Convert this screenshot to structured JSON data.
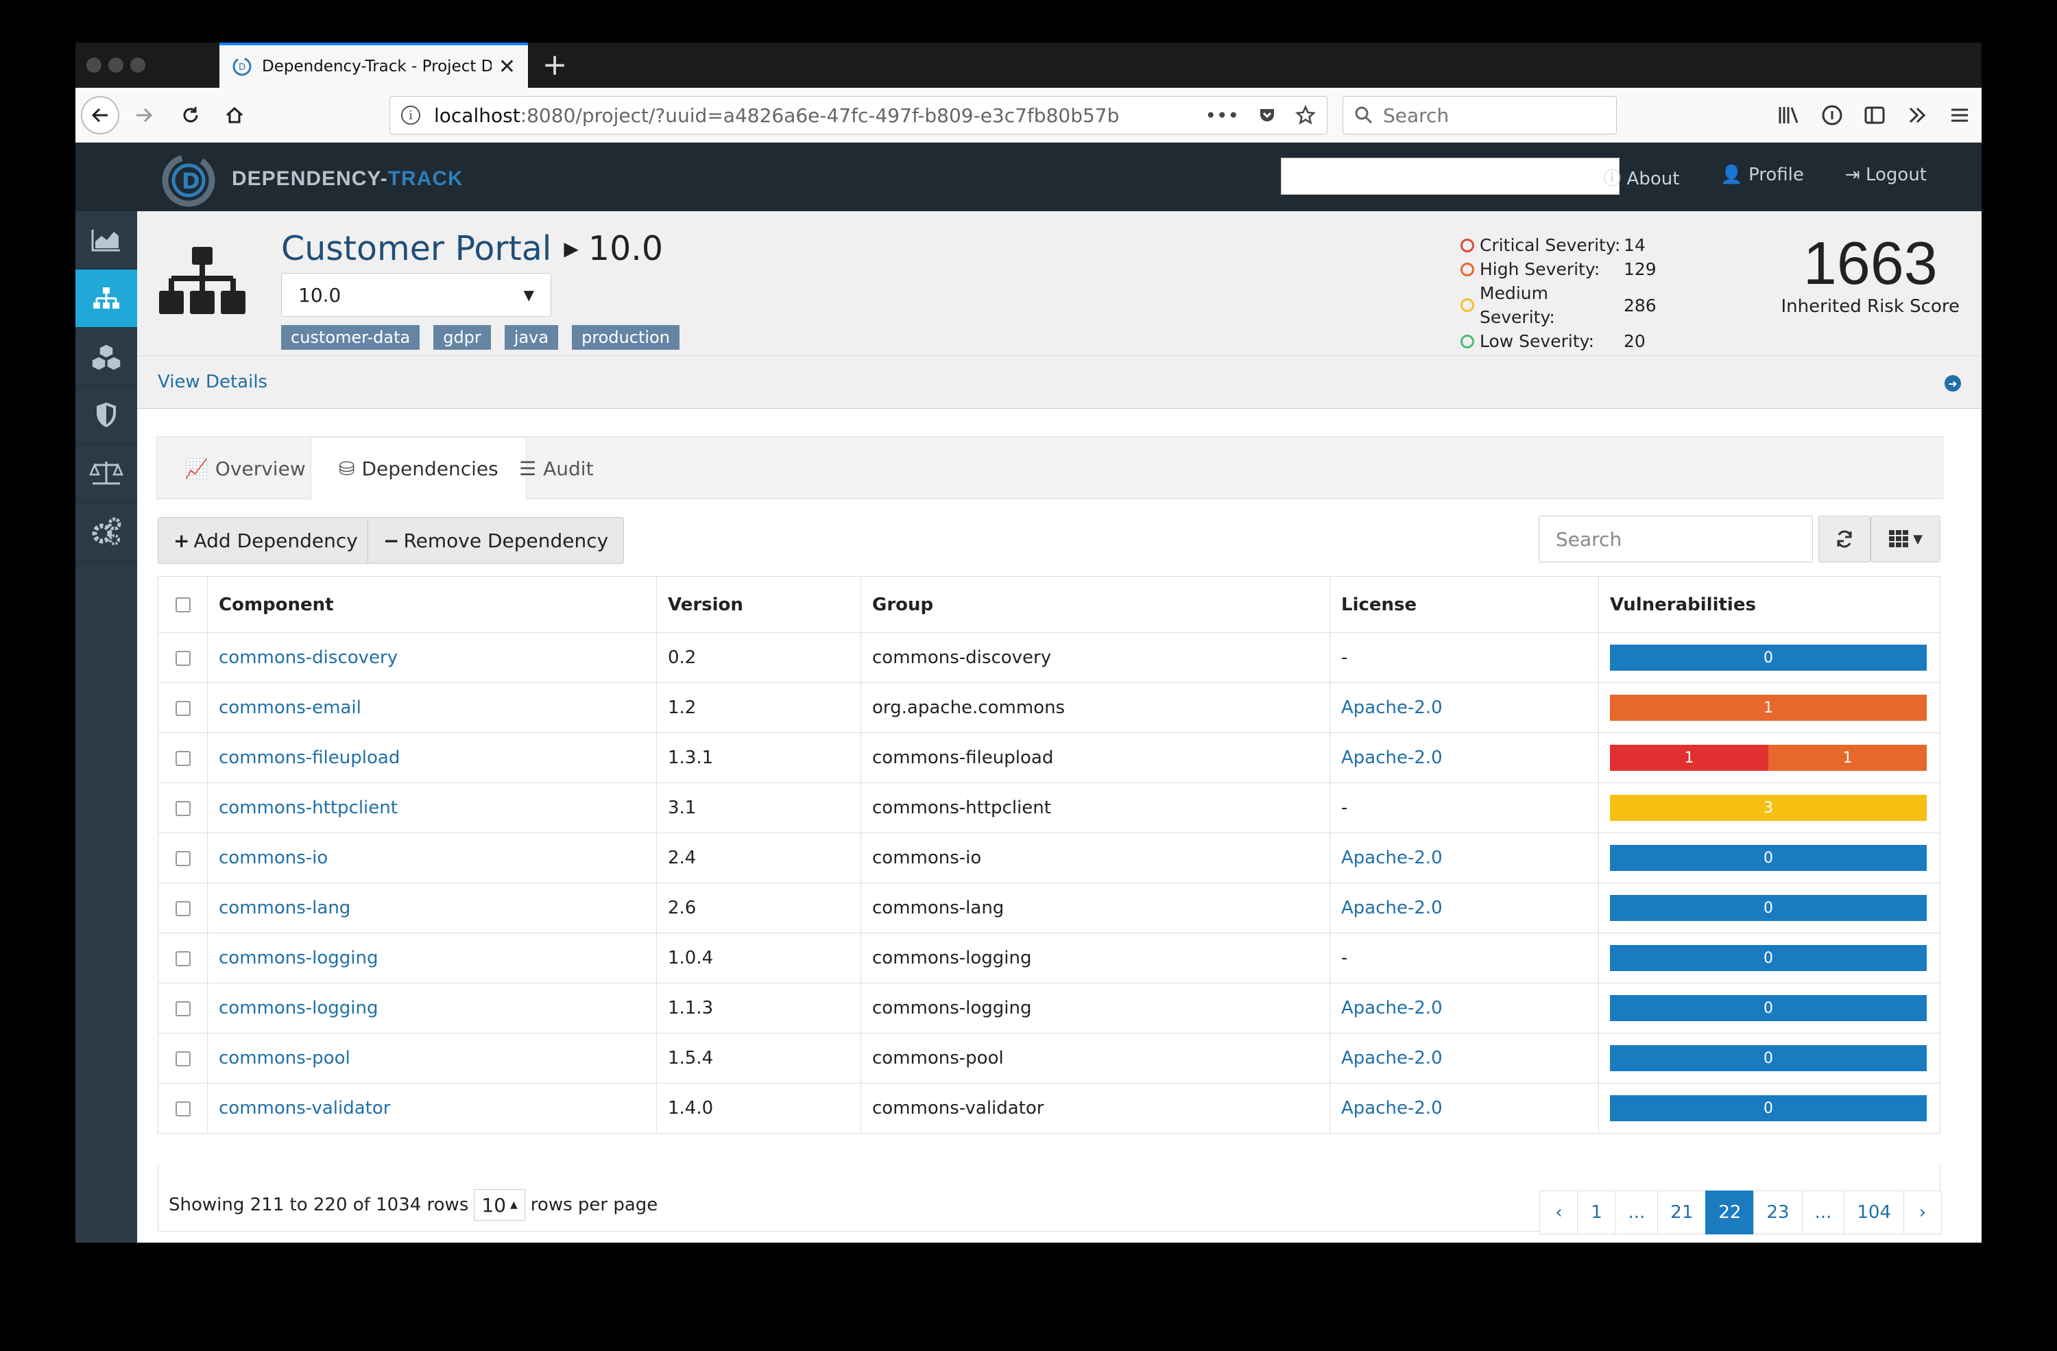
{
  "browser": {
    "tab_title": "Dependency-Track - Project De",
    "url_host": "localhost",
    "url_path": ":8080/project/?uuid=a4826a6e-47fc-497f-b809-e3c7fb80b57b",
    "search_placeholder": "Search",
    "more_dots": "•••"
  },
  "app": {
    "logo_part1": "DEPENDENCY-",
    "logo_part2": "TRACK",
    "nav": [
      "About",
      "Profile",
      "Logout"
    ]
  },
  "project": {
    "name": "Customer Portal",
    "version": "10.0",
    "selected_version": "10.0",
    "tags": [
      "customer-data",
      "gdpr",
      "java",
      "production"
    ],
    "severity": [
      {
        "label": "Critical Severity:",
        "count": "14",
        "color": "#dd4b39"
      },
      {
        "label": "High Severity:",
        "count": "129",
        "color": "#e8672b"
      },
      {
        "label": "Medium Severity:",
        "count": "286",
        "color": "#f5c02a"
      },
      {
        "label": "Low Severity:",
        "count": "20",
        "color": "#4dbd74"
      }
    ],
    "risk_score": "1663",
    "risk_label": "Inherited Risk Score",
    "view_details": "View Details"
  },
  "tabs": [
    "Overview",
    "Dependencies",
    "Audit"
  ],
  "toolbar": {
    "add": "Add Dependency",
    "remove": "Remove Dependency",
    "search_placeholder": "Search"
  },
  "table": {
    "headers": [
      "Component",
      "Version",
      "Group",
      "License",
      "Vulnerabilities"
    ],
    "rows": [
      {
        "component": "commons-discovery",
        "version": "0.2",
        "group": "commons-discovery",
        "license": "-"
      },
      {
        "component": "commons-email",
        "version": "1.2",
        "group": "org.apache.commons",
        "license": "Apache-2.0"
      },
      {
        "component": "commons-fileupload",
        "version": "1.3.1",
        "group": "commons-fileupload",
        "license": "Apache-2.0"
      },
      {
        "component": "commons-httpclient",
        "version": "3.1",
        "group": "commons-httpclient",
        "license": "-"
      },
      {
        "component": "commons-io",
        "version": "2.4",
        "group": "commons-io",
        "license": "Apache-2.0"
      },
      {
        "component": "commons-lang",
        "version": "2.6",
        "group": "commons-lang",
        "license": "Apache-2.0"
      },
      {
        "component": "commons-logging",
        "version": "1.0.4",
        "group": "commons-logging",
        "license": "-"
      },
      {
        "component": "commons-logging",
        "version": "1.1.3",
        "group": "commons-logging",
        "license": "Apache-2.0"
      },
      {
        "component": "commons-pool",
        "version": "1.5.4",
        "group": "commons-pool",
        "license": "Apache-2.0"
      },
      {
        "component": "commons-validator",
        "version": "1.4.0",
        "group": "commons-validator",
        "license": "Apache-2.0"
      }
    ],
    "vulns": [
      [
        {
          "v": "0",
          "c": "#1a7bc1"
        }
      ],
      [
        {
          "v": "1",
          "c": "#e8672b"
        }
      ],
      [
        {
          "v": "1",
          "c": "#e0302f"
        },
        {
          "v": "1",
          "c": "#e8672b"
        }
      ],
      [
        {
          "v": "3",
          "c": "#f5c011"
        }
      ],
      [
        {
          "v": "0",
          "c": "#1a7bc1"
        }
      ],
      [
        {
          "v": "0",
          "c": "#1a7bc1"
        }
      ],
      [
        {
          "v": "0",
          "c": "#1a7bc1"
        }
      ],
      [
        {
          "v": "0",
          "c": "#1a7bc1"
        }
      ],
      [
        {
          "v": "0",
          "c": "#1a7bc1"
        }
      ],
      [
        {
          "v": "0",
          "c": "#1a7bc1"
        }
      ]
    ]
  },
  "pagination": {
    "showing": "Showing 211 to 220 of 1034 rows",
    "per_page": "10",
    "per_page_suffix": "rows per page",
    "pages": [
      "‹",
      "1",
      "...",
      "21",
      "22",
      "23",
      "...",
      "104",
      "›"
    ],
    "active": "22"
  }
}
